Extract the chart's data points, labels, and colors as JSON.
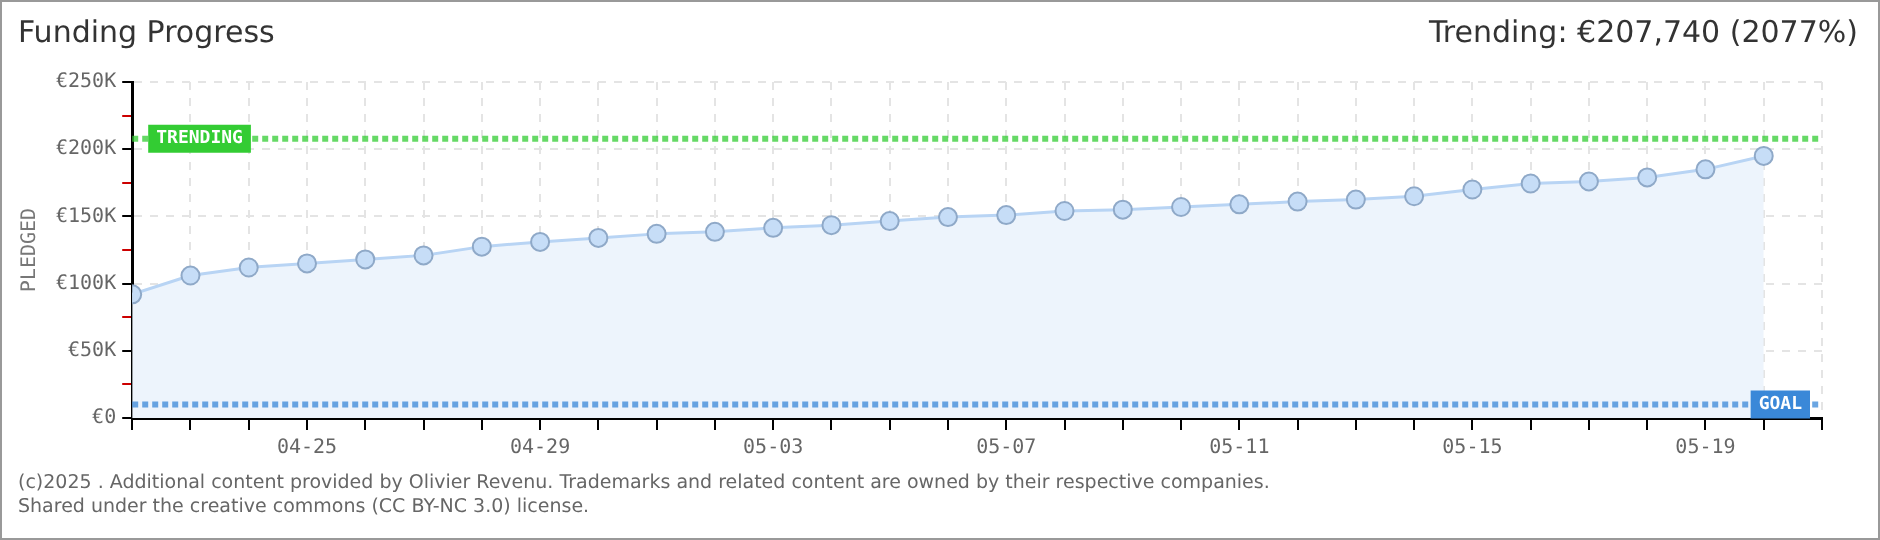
{
  "chart_data": {
    "type": "area",
    "title": "Funding Progress",
    "subtitle": "Trending: €207,740 (2077%)",
    "ylabel": "PLEDGED",
    "x": [
      "--04-22",
      "--04-23",
      "--04-24",
      "--04-25",
      "--04-26",
      "--04-27",
      "--04-28",
      "--04-29",
      "--04-30",
      "--05-01",
      "--05-02",
      "--05-03",
      "--05-04",
      "--05-05",
      "--05-06",
      "--05-07",
      "--05-08",
      "--05-09",
      "--05-10",
      "--05-11",
      "--05-12",
      "--05-13",
      "--05-14",
      "--05-15",
      "--05-16",
      "--05-17",
      "--05-18",
      "--05-19",
      "--05-20"
    ],
    "series": [
      {
        "color": "#b8d4f4",
        "values": [
          92000,
          106000,
          112000,
          115000,
          118000,
          121000,
          127500,
          131000,
          134000,
          137000,
          138500,
          141500,
          143500,
          146500,
          149500,
          151000,
          154000,
          155000,
          157000,
          159000,
          161000,
          162500,
          165000,
          170000,
          174500,
          176000,
          179000,
          185000,
          195000
        ]
      }
    ],
    "xlim": [
      "--04-22",
      "--05-21"
    ],
    "xticks": [
      {
        "value": "--04-22",
        "label": null
      },
      {
        "value": "--04-23",
        "label": null
      },
      {
        "value": "--04-24",
        "label": null
      },
      {
        "value": "--04-25",
        "label": "04-25"
      },
      {
        "value": "--04-26",
        "label": null
      },
      {
        "value": "--04-27",
        "label": null
      },
      {
        "value": "--04-28",
        "label": null
      },
      {
        "value": "--04-29",
        "label": "04-29"
      },
      {
        "value": "--04-30",
        "label": null
      },
      {
        "value": "--05-01",
        "label": null
      },
      {
        "value": "--05-02",
        "label": null
      },
      {
        "value": "--05-03",
        "label": "05-03"
      },
      {
        "value": "--05-04",
        "label": null
      },
      {
        "value": "--05-05",
        "label": null
      },
      {
        "value": "--05-06",
        "label": null
      },
      {
        "value": "--05-07",
        "label": "05-07"
      },
      {
        "value": "--05-08",
        "label": null
      },
      {
        "value": "--05-09",
        "label": null
      },
      {
        "value": "--05-10",
        "label": null
      },
      {
        "value": "--05-11",
        "label": "05-11"
      },
      {
        "value": "--05-12",
        "label": null
      },
      {
        "value": "--05-13",
        "label": null
      },
      {
        "value": "--05-14",
        "label": null
      },
      {
        "value": "--05-15",
        "label": "05-15"
      },
      {
        "value": "--05-16",
        "label": null
      },
      {
        "value": "--05-17",
        "label": null
      },
      {
        "value": "--05-18",
        "label": null
      },
      {
        "value": "--05-19",
        "label": "05-19"
      },
      {
        "value": "--05-20",
        "label": null
      },
      {
        "value": "--05-21",
        "label": null
      }
    ],
    "ylim": [
      0,
      250000
    ],
    "yticks": [
      {
        "value": 0,
        "label": "€0"
      },
      {
        "value": 25000,
        "label": null
      },
      {
        "value": 50000,
        "label": "€50K"
      },
      {
        "value": 75000,
        "label": null
      },
      {
        "value": 100000,
        "label": "€100K"
      },
      {
        "value": 125000,
        "label": null
      },
      {
        "value": 150000,
        "label": "€150K"
      },
      {
        "value": 175000,
        "label": null
      },
      {
        "value": 200000,
        "label": "€200K"
      },
      {
        "value": 225000,
        "label": null
      },
      {
        "value": 250000,
        "label": "€250K"
      }
    ],
    "ref_lines": [
      {
        "axis": "y",
        "value": 207740,
        "label": "TRENDING",
        "color": "#33cc33",
        "line_style": "dotted"
      },
      {
        "axis": "y",
        "value": 10000,
        "label": "GOAL",
        "color": "#3a88d8",
        "line_style": "dotted"
      }
    ],
    "grid": true,
    "marker": "circle",
    "legend": false,
    "annotations": [
      "(c)2025 . Additional content provided by Olivier Revenu. Trademarks and related content are owned by their respective companies.",
      "Shared under the creative commons (CC BY-NC 3.0) license."
    ]
  }
}
